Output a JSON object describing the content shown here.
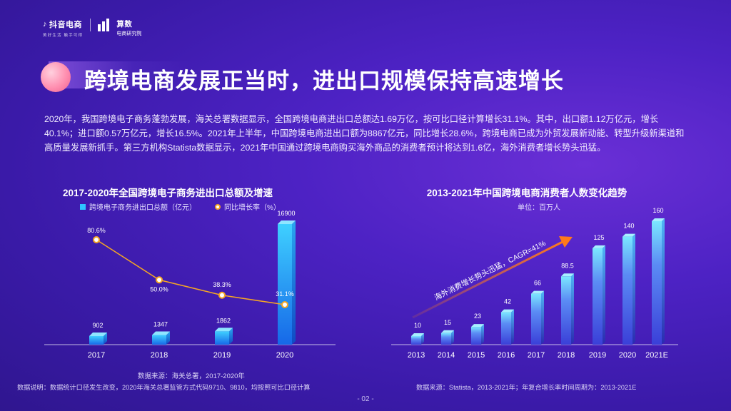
{
  "header": {
    "brand_primary": "抖音电商",
    "brand_primary_slogan": "美好生活 触手可得",
    "brand_secondary_line1": "算数",
    "brand_secondary_line2": "电商研究院"
  },
  "title": "跨境电商发展正当时，进出口规模保持高速增长",
  "paragraph": "2020年，我国跨境电子商务蓬勃发展，海关总署数据显示，全国跨境电商进出口总额达1.69万亿，按可比口径计算增长31.1%。其中，出口额1.12万亿元，增长40.1%；进口额0.57万亿元，增长16.5%。2021年上半年，中国跨境电商进出口额为8867亿元，同比增长28.6%，跨境电商已成为外贸发展新动能、转型升级新渠道和高质量发展新抓手。第三方机构Statista数据显示，2021年中国通过跨境电商购买海外商品的消费者预计将达到1.6亿，海外消费者增长势头迅猛。",
  "left_notes": {
    "source": "数据来源：海关总署，2017-2020年",
    "explanation": "数据说明：数据统计口径发生改变，2020年海关总署监管方式代码9710、9810，均按照可比口径计算"
  },
  "right_note": "数据来源：Statista，2013-2021年；年复合增长率时间周期为：2013-2021E",
  "page_number": "- 02 -",
  "colors": {
    "bar_light": "#3fd0ff",
    "bar_dark": "#1668e8",
    "right_bar_light": "#7be7ff",
    "right_bar_dark": "#3a3fd8",
    "line": "#f5a623",
    "arrow": "#ff7a1a"
  },
  "chart_data": [
    {
      "type": "bar",
      "title": "2017-2020年全国跨境电子商务进出口总额及增速",
      "categories": [
        "2017",
        "2018",
        "2019",
        "2020"
      ],
      "series": [
        {
          "name": "跨境电子商务进出口总额（亿元）",
          "type": "bar",
          "values": [
            902,
            1347,
            1862,
            16900
          ],
          "labels": [
            "902",
            "1347",
            "1862",
            "16900"
          ]
        },
        {
          "name": "同比增长率（%）",
          "type": "line",
          "values": [
            80.6,
            50.0,
            38.3,
            31.1
          ],
          "labels": [
            "80.6%",
            "50.0%",
            "38.3%",
            "31.1%"
          ]
        }
      ],
      "ylim": [
        0,
        17000
      ],
      "y2lim": [
        0,
        100
      ]
    },
    {
      "type": "bar",
      "title": "2013-2021年中国跨境电商消费者人数变化趋势",
      "unit": "单位：百万人",
      "categories": [
        "2013",
        "2014",
        "2015",
        "2016",
        "2017",
        "2018",
        "2019",
        "2020",
        "2021E"
      ],
      "values": [
        10,
        15,
        23,
        42,
        66,
        88.5,
        125,
        140,
        160
      ],
      "labels": [
        "10",
        "15",
        "23",
        "42",
        "66",
        "88.5",
        "125",
        "140",
        "160"
      ],
      "annotation": "海外消费增长势头迅猛，CAGR=41%",
      "ylim": [
        0,
        160
      ]
    }
  ]
}
